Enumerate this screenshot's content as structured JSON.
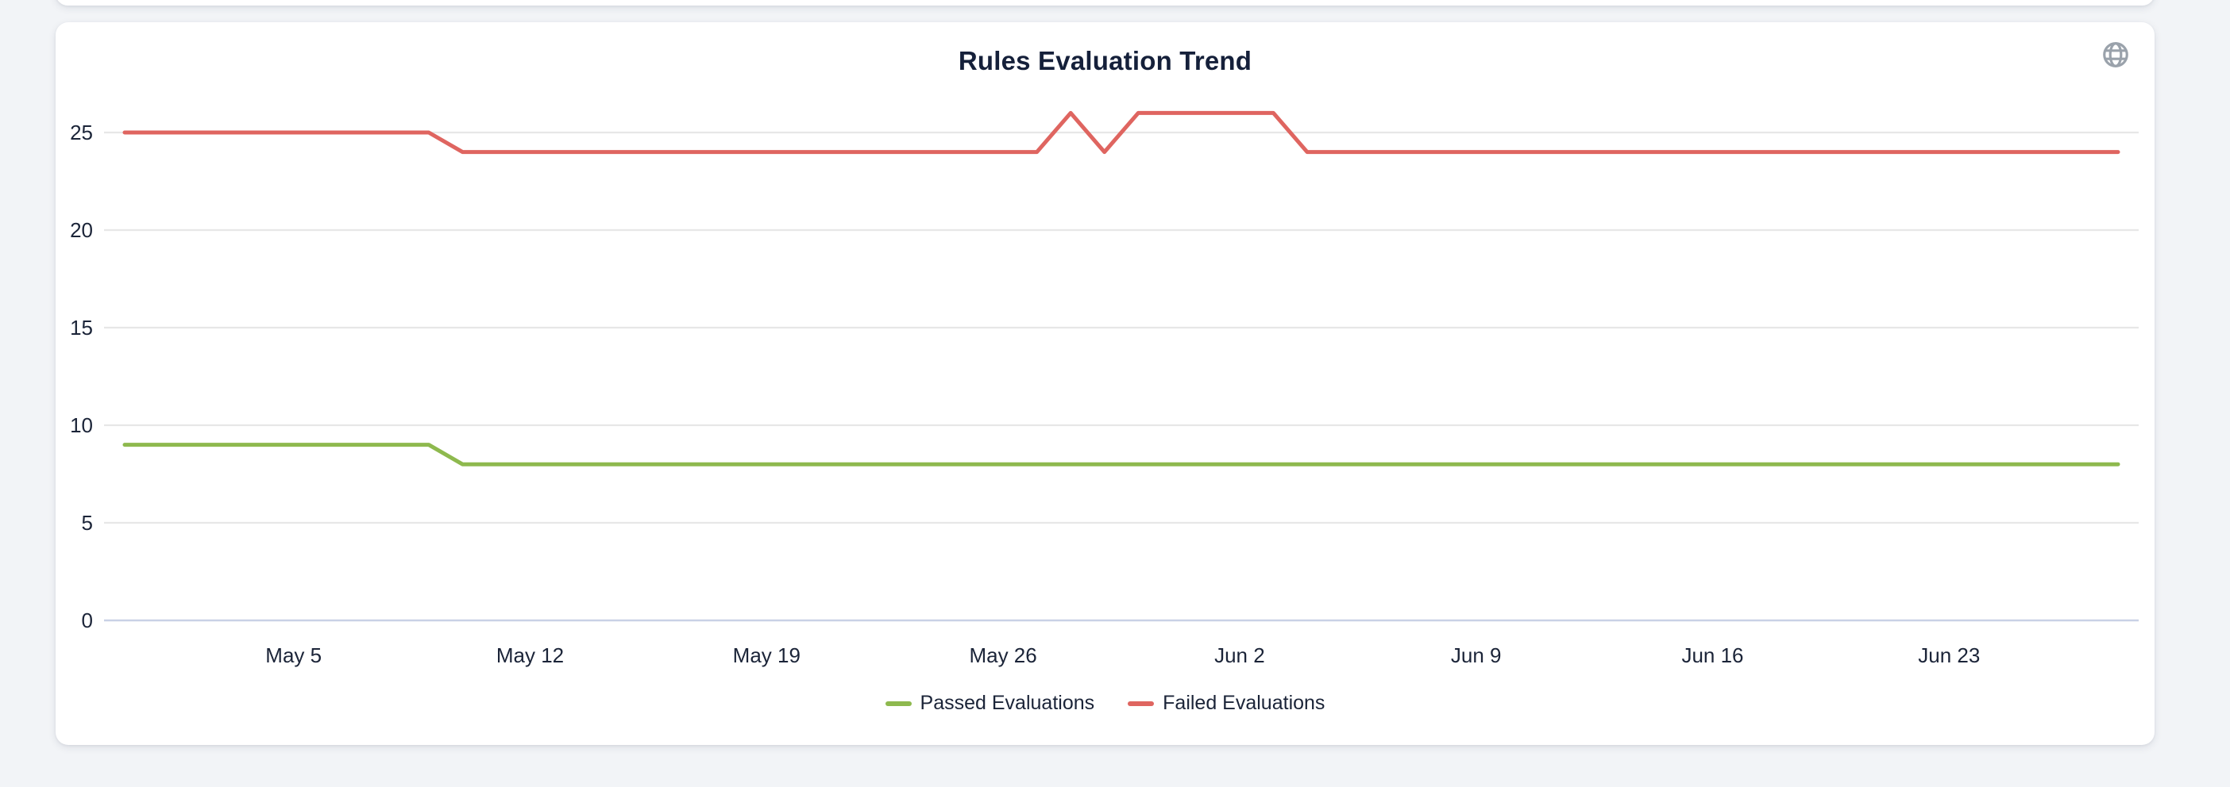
{
  "card": {
    "title": "Rules Evaluation Trend"
  },
  "icons": {
    "top_right": "globe-icon"
  },
  "colors": {
    "page_background": "#f2f4f7",
    "card_background": "#ffffff",
    "title_text": "#15203a",
    "axis_label_text": "#1b2438",
    "globe_icon": "#9aa2ab"
  },
  "chart_data": {
    "type": "line",
    "title": "Rules Evaluation Trend",
    "x": [
      "Apr 30",
      "May 1",
      "May 2",
      "May 3",
      "May 4",
      "May 5",
      "May 6",
      "May 7",
      "May 8",
      "May 9",
      "May 10",
      "May 11",
      "May 12",
      "May 13",
      "May 14",
      "May 15",
      "May 16",
      "May 17",
      "May 18",
      "May 19",
      "May 20",
      "May 21",
      "May 22",
      "May 23",
      "May 24",
      "May 25",
      "May 26",
      "May 27",
      "May 28",
      "May 29",
      "May 30",
      "May 31",
      "Jun 1",
      "Jun 2",
      "Jun 3",
      "Jun 4",
      "Jun 5",
      "Jun 6",
      "Jun 7",
      "Jun 8",
      "Jun 9",
      "Jun 10",
      "Jun 11",
      "Jun 12",
      "Jun 13",
      "Jun 14",
      "Jun 15",
      "Jun 16",
      "Jun 17",
      "Jun 18",
      "Jun 19",
      "Jun 20",
      "Jun 21",
      "Jun 22",
      "Jun 23",
      "Jun 24",
      "Jun 25",
      "Jun 26",
      "Jun 27",
      "Jun 28"
    ],
    "series": [
      {
        "name": "Passed Evaluations",
        "color": "#8eb94e",
        "values": [
          9,
          9,
          9,
          9,
          9,
          9,
          9,
          9,
          9,
          9,
          8,
          8,
          8,
          8,
          8,
          8,
          8,
          8,
          8,
          8,
          8,
          8,
          8,
          8,
          8,
          8,
          8,
          8,
          8,
          8,
          8,
          8,
          8,
          8,
          8,
          8,
          8,
          8,
          8,
          8,
          8,
          8,
          8,
          8,
          8,
          8,
          8,
          8,
          8,
          8,
          8,
          8,
          8,
          8,
          8,
          8,
          8,
          8,
          8,
          8
        ]
      },
      {
        "name": "Failed Evaluations",
        "color": "#df6560",
        "values": [
          25,
          25,
          25,
          25,
          25,
          25,
          25,
          25,
          25,
          25,
          24,
          24,
          24,
          24,
          24,
          24,
          24,
          24,
          24,
          24,
          24,
          24,
          24,
          24,
          24,
          24,
          24,
          24,
          26,
          24,
          26,
          26,
          26,
          26,
          26,
          24,
          24,
          24,
          24,
          24,
          24,
          24,
          24,
          24,
          24,
          24,
          24,
          24,
          24,
          24,
          24,
          24,
          24,
          24,
          24,
          24,
          24,
          24,
          24,
          24
        ]
      }
    ],
    "y_ticks": [
      0,
      5,
      10,
      15,
      20,
      25
    ],
    "x_tick_labels": [
      "May 5",
      "May 12",
      "May 19",
      "May 26",
      "Jun 2",
      "Jun 9",
      "Jun 16",
      "Jun 23"
    ],
    "x_tick_indices": [
      5,
      12,
      19,
      26,
      33,
      40,
      47,
      54
    ],
    "ylim": [
      0,
      26.2
    ],
    "grid": "horizontal-only",
    "grid_color": "#e7e7e7",
    "baseline_color": "#c9d1e6",
    "label_color": "#1b2438",
    "legend_position": "bottom"
  }
}
